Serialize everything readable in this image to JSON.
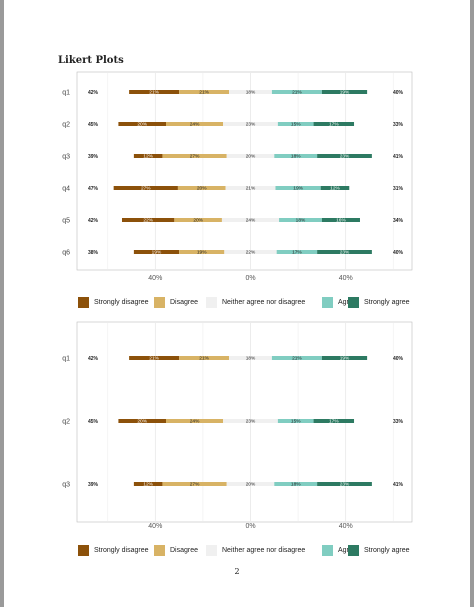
{
  "title": "Likert Plots",
  "page_number": "2",
  "colors": {
    "strongly_disagree": "#8c510a",
    "disagree": "#d8b365",
    "neutral": "#f0f0f0",
    "agree": "#80cdc1",
    "strongly_agree": "#2d7a62"
  },
  "legend": [
    {
      "label": "Strongly disagree",
      "color": "#8c510a"
    },
    {
      "label": "Disagree",
      "color": "#d8b365"
    },
    {
      "label": "Neither agree nor disagree",
      "color": "#f0f0f0"
    },
    {
      "label": "Agree",
      "color": "#80cdc1"
    },
    {
      "label": "Strongly agree",
      "color": "#2d7a62"
    }
  ],
  "chart_data": [
    {
      "type": "bar",
      "subtype": "diverging-likert",
      "x_ticks": [
        "40%",
        "0%",
        "40%"
      ],
      "xlim": [
        -70,
        70
      ],
      "categories": [
        "q1",
        "q2",
        "q3",
        "q4",
        "q5",
        "q6"
      ],
      "rows": [
        {
          "q": "q1",
          "left": "42%",
          "right": "40%",
          "sd": 21,
          "d": 21,
          "n": 18,
          "a": 21,
          "sa": 19,
          "sd_label": "21%",
          "d_label": "21%",
          "n_label": "18%",
          "a_label": "21%",
          "sa_label": "19%"
        },
        {
          "q": "q2",
          "left": "45%",
          "right": "33%",
          "sd": 20,
          "d": 24,
          "n": 23,
          "a": 15,
          "sa": 17,
          "sd_label": "20%",
          "d_label": "24%",
          "n_label": "23%",
          "a_label": "15%",
          "sa_label": "17%"
        },
        {
          "q": "q3",
          "left": "39%",
          "right": "41%",
          "sd": 12,
          "d": 27,
          "n": 20,
          "a": 18,
          "sa": 23,
          "sd_label": "12%",
          "d_label": "27%",
          "n_label": "20%",
          "a_label": "18%",
          "sa_label": "23%"
        },
        {
          "q": "q4",
          "left": "47%",
          "right": "31%",
          "sd": 27,
          "d": 20,
          "n": 21,
          "a": 19,
          "sa": 12,
          "sd_label": "27%",
          "d_label": "20%",
          "n_label": "21%",
          "a_label": "19%",
          "sa_label": "12%"
        },
        {
          "q": "q5",
          "left": "42%",
          "right": "34%",
          "sd": 22,
          "d": 20,
          "n": 24,
          "a": 18,
          "sa": 16,
          "sd_label": "22%",
          "d_label": "20%",
          "n_label": "24%",
          "a_label": "18%",
          "sa_label": "16%"
        },
        {
          "q": "q6",
          "left": "38%",
          "right": "40%",
          "sd": 19,
          "d": 19,
          "n": 22,
          "a": 17,
          "sa": 23,
          "sd_label": "19%",
          "d_label": "19%",
          "n_label": "22%",
          "a_label": "17%",
          "sa_label": "23%"
        }
      ],
      "grid": true,
      "legend_position": "bottom"
    },
    {
      "type": "bar",
      "subtype": "diverging-likert",
      "x_ticks": [
        "40%",
        "0%",
        "40%"
      ],
      "xlim": [
        -70,
        70
      ],
      "categories": [
        "q1",
        "q2",
        "q3"
      ],
      "rows": [
        {
          "q": "q1",
          "left": "42%",
          "right": "40%",
          "sd": 21,
          "d": 21,
          "n": 18,
          "a": 21,
          "sa": 19,
          "sd_label": "21%",
          "d_label": "21%",
          "n_label": "18%",
          "a_label": "21%",
          "sa_label": "19%"
        },
        {
          "q": "q2",
          "left": "45%",
          "right": "33%",
          "sd": 20,
          "d": 24,
          "n": 23,
          "a": 15,
          "sa": 17,
          "sd_label": "20%",
          "d_label": "24%",
          "n_label": "23%",
          "a_label": "15%",
          "sa_label": "17%"
        },
        {
          "q": "q3",
          "left": "39%",
          "right": "41%",
          "sd": 12,
          "d": 27,
          "n": 20,
          "a": 18,
          "sa": 23,
          "sd_label": "12%",
          "d_label": "27%",
          "n_label": "20%",
          "a_label": "18%",
          "sa_label": "23%"
        }
      ],
      "grid": true,
      "legend_position": "bottom"
    }
  ]
}
